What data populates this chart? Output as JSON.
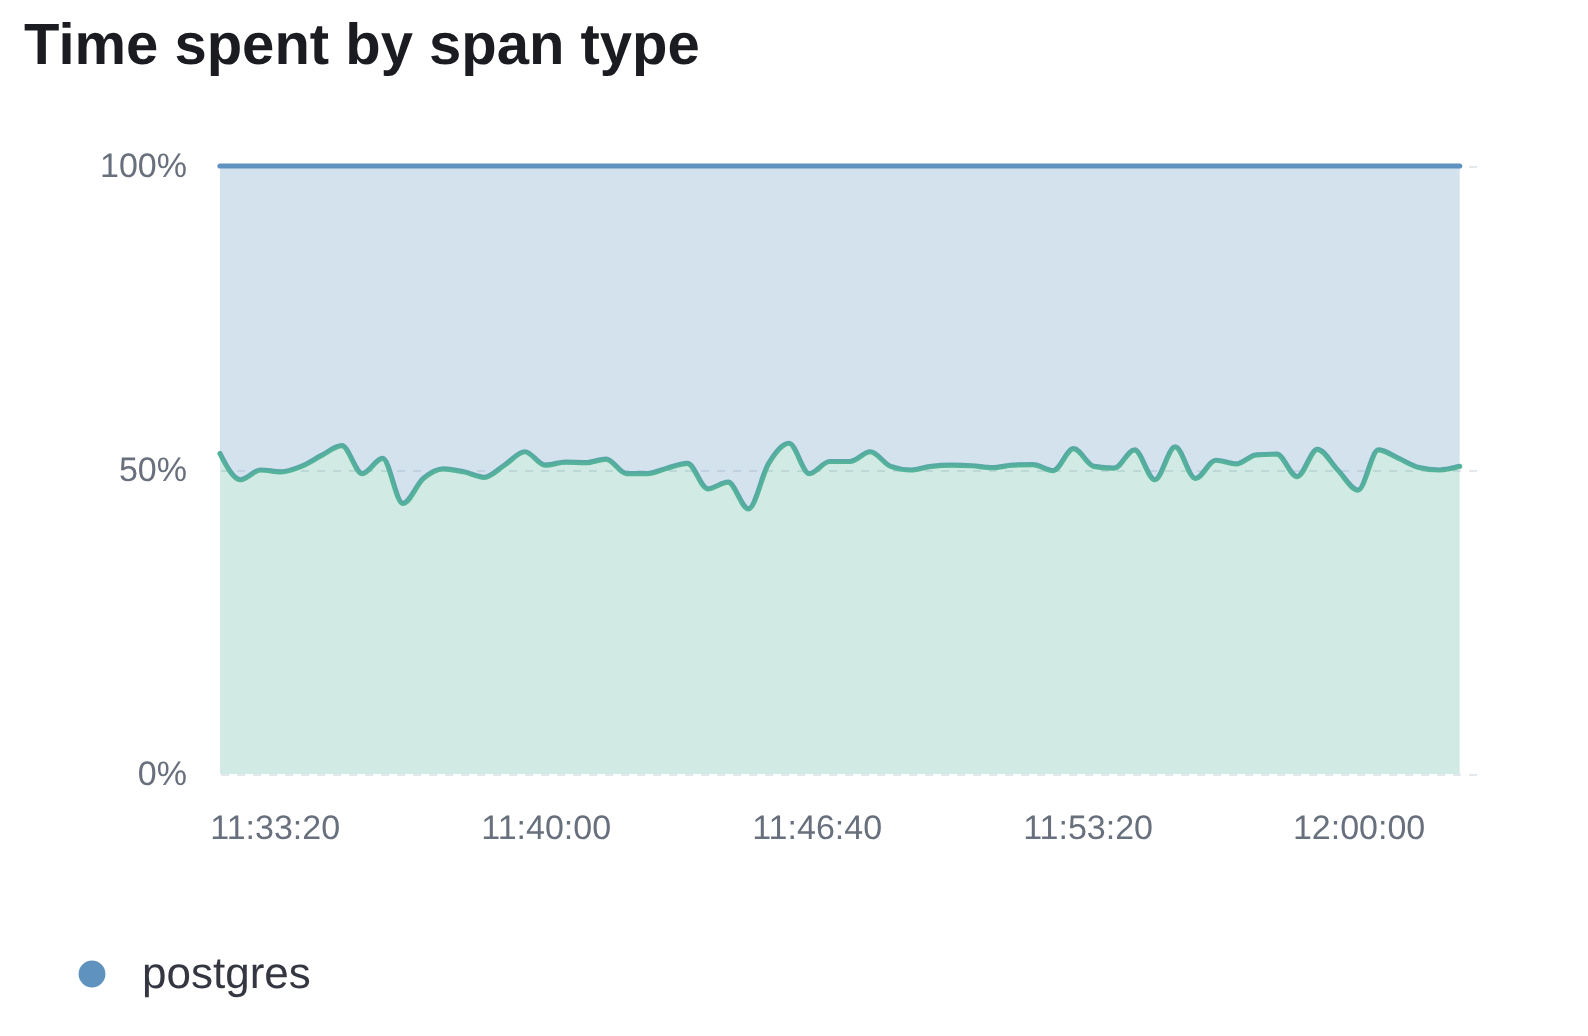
{
  "chart_data": {
    "type": "area",
    "title": "Time spent by span type",
    "stacked": true,
    "x": [
      11.53333,
      11.54167,
      11.55,
      11.55833,
      11.56667,
      11.575,
      11.58333,
      11.59167,
      11.6,
      11.60833,
      11.61667,
      11.625,
      11.63333,
      11.64167,
      11.65,
      11.65833,
      11.66667,
      11.675,
      11.68333,
      11.69167,
      11.7,
      11.70833,
      11.71667,
      11.725,
      11.73333,
      11.74167,
      11.75,
      11.75833,
      11.76667,
      11.775,
      11.78333,
      11.79167,
      11.8,
      11.80833,
      11.81667,
      11.825,
      11.83333,
      11.84167,
      11.85,
      11.85833,
      11.86667,
      11.875,
      11.88333,
      11.89167,
      11.9,
      11.90833,
      11.91667,
      11.925,
      11.93333,
      11.94167,
      11.95,
      11.95833,
      11.96667,
      11.975,
      11.98333,
      11.99167,
      12.0,
      12.00833,
      12.01667,
      12.025,
      12.03333,
      12.04167
    ],
    "series": [
      {
        "color": "#54b399",
        "values": [
          52.7,
          48.4,
          50.0,
          49.7,
          50.6,
          52.4,
          54.0,
          49.4,
          51.9,
          44.5,
          48.6,
          50.2,
          49.7,
          48.8,
          50.8,
          53.0,
          50.8,
          51.3,
          51.2,
          51.8,
          49.4,
          49.4,
          50.3,
          51.1,
          46.9,
          48.0,
          43.6,
          51.1,
          54.4,
          49.4,
          51.4,
          51.4,
          53.0,
          50.6,
          50.0,
          50.6,
          50.8,
          50.7,
          50.4,
          50.8,
          50.9,
          49.9,
          53.5,
          50.6,
          50.3,
          53.3,
          48.4,
          53.8,
          48.6,
          51.6,
          51.0,
          52.5,
          52.6,
          48.9,
          53.4,
          50.0,
          46.7,
          53.3,
          51.9,
          50.4,
          50.0,
          50.6
        ]
      },
      {
        "name": "postgres",
        "color": "#6092c0",
        "values": [
          47.3,
          51.6,
          50.0,
          50.3,
          49.4,
          47.6,
          46.0,
          50.6,
          48.1,
          55.5,
          51.4,
          49.8,
          50.3,
          51.2,
          49.2,
          47.0,
          49.2,
          48.7,
          48.8,
          48.2,
          50.6,
          50.6,
          49.7,
          48.9,
          53.1,
          52.0,
          56.4,
          48.9,
          45.6,
          50.6,
          48.6,
          48.6,
          47.0,
          49.4,
          50.0,
          49.4,
          49.2,
          49.3,
          49.6,
          49.2,
          49.1,
          50.1,
          46.5,
          49.4,
          49.7,
          46.7,
          51.6,
          46.2,
          51.4,
          48.4,
          49.0,
          47.5,
          47.4,
          51.1,
          46.6,
          50.0,
          53.3,
          46.7,
          48.1,
          49.6,
          50.0,
          49.4
        ]
      }
    ],
    "xlim": [
      11.53333,
      12.05
    ],
    "xticks": [
      {
        "value": 11.555556,
        "label": "11:33:20"
      },
      {
        "value": 11.666667,
        "label": "11:40:00"
      },
      {
        "value": 11.777778,
        "label": "11:46:40"
      },
      {
        "value": 11.888889,
        "label": "11:53:20"
      },
      {
        "value": 12,
        "label": "12:00:00"
      }
    ],
    "ylim": [
      0,
      100
    ],
    "yticks": [
      {
        "value": 0,
        "label": "0%"
      },
      {
        "value": 50,
        "label": "50%"
      },
      {
        "value": 100,
        "label": "100%"
      }
    ],
    "grid": "y",
    "legend": "bottom"
  }
}
